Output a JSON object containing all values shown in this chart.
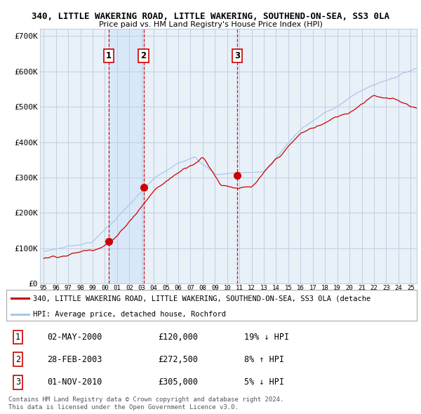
{
  "title": "340, LITTLE WAKERING ROAD, LITTLE WAKERING, SOUTHEND-ON-SEA, SS3 0LA",
  "subtitle": "Price paid vs. HM Land Registry's House Price Index (HPI)",
  "ylabel_ticks": [
    "£0",
    "£100K",
    "£200K",
    "£300K",
    "£400K",
    "£500K",
    "£600K",
    "£700K"
  ],
  "ytick_vals": [
    0,
    100000,
    200000,
    300000,
    400000,
    500000,
    600000,
    700000
  ],
  "ylim": [
    0,
    720000
  ],
  "xlim_start": 1994.7,
  "xlim_end": 2025.5,
  "sale_points": [
    {
      "date": 2000.33,
      "price": 120000,
      "label": "1"
    },
    {
      "date": 2003.16,
      "price": 272500,
      "label": "2"
    },
    {
      "date": 2010.83,
      "price": 305000,
      "label": "3"
    }
  ],
  "vline_dates": [
    2000.33,
    2003.16,
    2010.83
  ],
  "shade_x0": 2000.33,
  "shade_x1": 2003.16,
  "hpi_color": "#aac8e8",
  "price_color": "#cc0000",
  "point_color": "#cc0000",
  "vline_color": "#cc0000",
  "shade_color": "#d8e8f8",
  "grid_color": "#c0d0e0",
  "bg_color": "#e8f0f8",
  "legend_line1": "340, LITTLE WAKERING ROAD, LITTLE WAKERING, SOUTHEND-ON-SEA, SS3 0LA (detache",
  "legend_line2": "HPI: Average price, detached house, Rochford",
  "legend_color1": "#cc0000",
  "legend_color2": "#aac8e8",
  "table_rows": [
    {
      "num": "1",
      "date": "02-MAY-2000",
      "price": "£120,000",
      "hpi": "19% ↓ HPI"
    },
    {
      "num": "2",
      "date": "28-FEB-2003",
      "price": "£272,500",
      "hpi": "8% ↑ HPI"
    },
    {
      "num": "3",
      "date": "01-NOV-2010",
      "price": "£305,000",
      "hpi": "5% ↓ HPI"
    }
  ],
  "footer": "Contains HM Land Registry data © Crown copyright and database right 2024.\nThis data is licensed under the Open Government Licence v3.0.",
  "xtick_years": [
    1995,
    1996,
    1997,
    1998,
    1999,
    2000,
    2001,
    2002,
    2003,
    2004,
    2005,
    2006,
    2007,
    2008,
    2009,
    2010,
    2011,
    2012,
    2013,
    2014,
    2015,
    2016,
    2017,
    2018,
    2019,
    2020,
    2021,
    2022,
    2023,
    2024,
    2025
  ]
}
